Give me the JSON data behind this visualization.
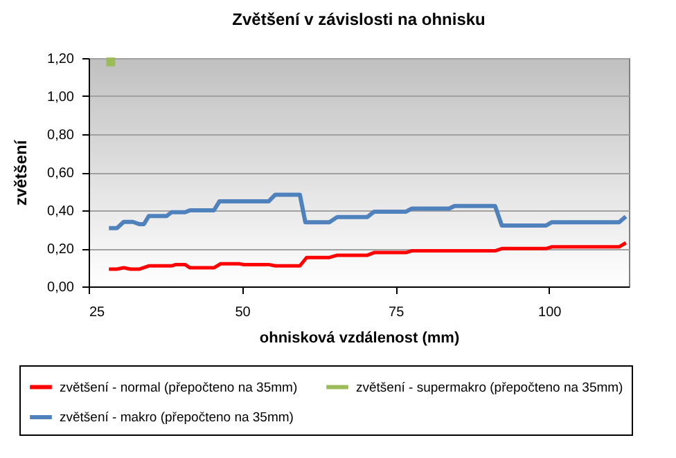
{
  "chart_data": {
    "type": "line",
    "title": "Zvětšení v závislosti na ohnisku",
    "xlabel": "ohnisková vzdálenost (mm)",
    "ylabel": "zvětšení",
    "xlim": [
      25,
      113
    ],
    "xticks": [
      25,
      50,
      75,
      100
    ],
    "ylim": [
      0,
      1.2
    ],
    "yticks": [
      {
        "value": 0,
        "label": "0,00"
      },
      {
        "value": 0.2,
        "label": "0,20"
      },
      {
        "value": 0.4,
        "label": "0,40"
      },
      {
        "value": 0.6,
        "label": "0,60"
      },
      {
        "value": 0.8,
        "label": "0,80"
      },
      {
        "value": 1.0,
        "label": "1,00"
      },
      {
        "value": 1.2,
        "label": "1,20"
      }
    ],
    "grid": "y",
    "legend": "bottom",
    "series": [
      {
        "name": "zvětšení - normal (přepočteno na 35mm)",
        "color": "#ff0000",
        "x": [
          28.3,
          29.6,
          30.7,
          31.8,
          33.3,
          34.8,
          38.5,
          39.2,
          40.7,
          41.5,
          45.4,
          46.5,
          49.5,
          50.2,
          54.3,
          55.4,
          59.4,
          60.5,
          64.2,
          65.5,
          70.4,
          71.5,
          76.7,
          77.6,
          91.2,
          92.3,
          99.5,
          100.4,
          111.4,
          112.5
        ],
        "values": [
          0.091,
          0.091,
          0.098,
          0.091,
          0.091,
          0.108,
          0.108,
          0.115,
          0.115,
          0.098,
          0.098,
          0.119,
          0.119,
          0.115,
          0.115,
          0.108,
          0.108,
          0.152,
          0.152,
          0.164,
          0.164,
          0.178,
          0.178,
          0.187,
          0.187,
          0.199,
          0.199,
          0.208,
          0.208,
          0.229
        ]
      },
      {
        "name": "zvětšení - makro (přepočteno na 35mm)",
        "color": "#4f81bd",
        "x": [
          28.3,
          29.6,
          30.7,
          32.2,
          33.3,
          34.0,
          34.8,
          37.7,
          38.5,
          40.7,
          41.5,
          45.4,
          46.3,
          54.3,
          55.4,
          59.4,
          60.3,
          64.2,
          65.5,
          70.4,
          71.5,
          76.7,
          77.6,
          83.7,
          84.6,
          91.2,
          92.3,
          99.5,
          100.4,
          111.4,
          112.5
        ],
        "values": [
          0.306,
          0.306,
          0.339,
          0.339,
          0.327,
          0.327,
          0.37,
          0.37,
          0.39,
          0.39,
          0.4,
          0.4,
          0.447,
          0.447,
          0.482,
          0.482,
          0.337,
          0.337,
          0.365,
          0.365,
          0.393,
          0.393,
          0.409,
          0.409,
          0.423,
          0.423,
          0.32,
          0.32,
          0.337,
          0.337,
          0.367
        ]
      },
      {
        "name": "zvětšení - supermakro (přepočteno na 35mm)",
        "color": "#9bbb59",
        "type": "scatter",
        "marker": "square",
        "x": [
          28.6
        ],
        "values": [
          1.18
        ]
      }
    ]
  }
}
